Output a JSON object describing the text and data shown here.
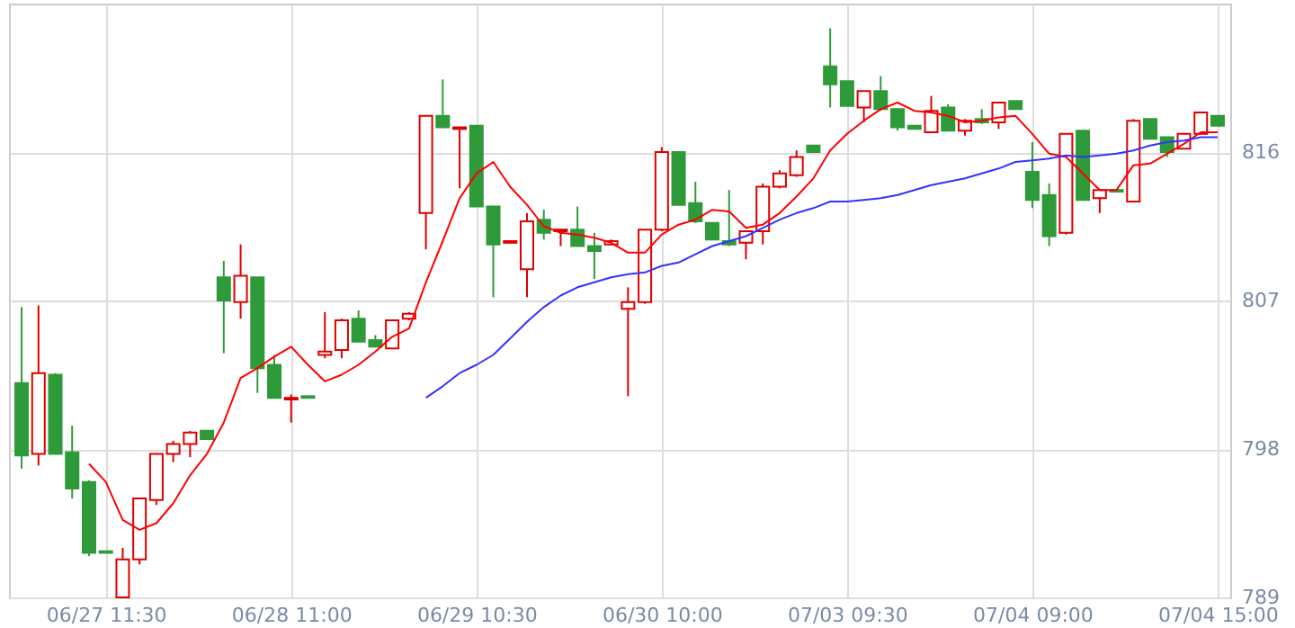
{
  "chart_data": {
    "type": "candlestick",
    "categories": [
      null,
      null,
      null,
      null,
      null,
      "06/27 11:30",
      null,
      null,
      null,
      null,
      null,
      null,
      null,
      null,
      null,
      null,
      "06/28 11:00",
      null,
      null,
      null,
      null,
      null,
      null,
      null,
      null,
      null,
      null,
      "06/29 10:30",
      null,
      null,
      null,
      null,
      null,
      null,
      null,
      null,
      null,
      null,
      "06/30 10:00",
      null,
      null,
      null,
      null,
      null,
      null,
      null,
      null,
      null,
      null,
      "07/03 09:30",
      null,
      null,
      null,
      null,
      null,
      null,
      null,
      null,
      null,
      null,
      "07/04 09:00",
      null,
      null,
      null,
      null,
      null,
      null,
      null,
      null,
      null,
      null,
      "07/04 15:00"
    ],
    "ohlc": [
      [
        802.0,
        806.6,
        796.8,
        797.6
      ],
      [
        797.7,
        806.7,
        797.0,
        802.6
      ],
      [
        802.5,
        802.6,
        797.7,
        797.7
      ],
      [
        797.8,
        799.4,
        795.0,
        795.6
      ],
      [
        796.0,
        796.1,
        791.5,
        791.7
      ],
      [
        791.8,
        791.8,
        791.7,
        791.7
      ],
      [
        789.0,
        792.0,
        789.0,
        791.3
      ],
      [
        791.3,
        795.0,
        791.0,
        795.0
      ],
      [
        794.9,
        797.7,
        794.6,
        797.7
      ],
      [
        797.7,
        798.5,
        797.2,
        798.3
      ],
      [
        798.3,
        799.1,
        797.5,
        799.0
      ],
      [
        799.1,
        799.1,
        798.6,
        798.6
      ],
      [
        808.4,
        809.4,
        803.8,
        807.0
      ],
      [
        806.9,
        810.4,
        805.9,
        808.5
      ],
      [
        808.4,
        808.4,
        801.4,
        802.9
      ],
      [
        803.1,
        803.7,
        801.1,
        801.1
      ],
      [
        801.0,
        801.3,
        799.6,
        801.1
      ],
      [
        801.2,
        801.2,
        801.1,
        801.1
      ],
      [
        803.7,
        806.3,
        803.5,
        803.9
      ],
      [
        804.0,
        805.9,
        803.5,
        805.8
      ],
      [
        805.9,
        806.4,
        804.5,
        804.5
      ],
      [
        804.6,
        804.9,
        804.2,
        804.2
      ],
      [
        804.1,
        805.8,
        804.1,
        805.8
      ],
      [
        805.9,
        806.3,
        805.8,
        806.2
      ],
      [
        812.3,
        818.2,
        810.1,
        818.2
      ],
      [
        818.2,
        820.4,
        817.5,
        817.5
      ],
      [
        817.4,
        817.5,
        813.8,
        817.5
      ],
      [
        817.6,
        817.6,
        812.7,
        812.7
      ],
      [
        812.7,
        812.7,
        807.2,
        810.4
      ],
      [
        810.5,
        810.6,
        810.5,
        810.6
      ],
      [
        808.9,
        812.3,
        807.2,
        811.8
      ],
      [
        811.9,
        812.5,
        810.7,
        811.1
      ],
      [
        811.2,
        811.3,
        810.3,
        811.3
      ],
      [
        811.3,
        812.7,
        810.3,
        810.3
      ],
      [
        810.3,
        811.1,
        808.3,
        810.0
      ],
      [
        810.4,
        810.7,
        810.4,
        810.6
      ],
      [
        806.5,
        807.8,
        801.2,
        806.9
      ],
      [
        806.9,
        811.3,
        806.8,
        811.3
      ],
      [
        811.3,
        816.3,
        811.2,
        816.0
      ],
      [
        816.0,
        816.0,
        812.8,
        812.8
      ],
      [
        812.9,
        814.2,
        811.7,
        811.8
      ],
      [
        811.7,
        811.7,
        810.7,
        810.7
      ],
      [
        810.6,
        813.7,
        810.3,
        810.4
      ],
      [
        810.5,
        811.2,
        809.5,
        811.2
      ],
      [
        811.2,
        814.1,
        810.4,
        813.9
      ],
      [
        813.9,
        814.9,
        813.8,
        814.7
      ],
      [
        814.6,
        816.1,
        814.5,
        815.7
      ],
      [
        816.4,
        816.4,
        816.0,
        816.0
      ],
      [
        821.2,
        823.5,
        818.7,
        820.1
      ],
      [
        820.3,
        820.3,
        818.8,
        818.8
      ],
      [
        818.7,
        819.7,
        817.8,
        819.7
      ],
      [
        819.7,
        820.6,
        818.5,
        818.6
      ],
      [
        818.6,
        818.6,
        817.3,
        817.5
      ],
      [
        817.6,
        817.6,
        817.4,
        817.4
      ],
      [
        817.2,
        819.4,
        817.2,
        818.5
      ],
      [
        818.7,
        818.9,
        817.3,
        817.3
      ],
      [
        817.3,
        818.0,
        817.0,
        817.9
      ],
      [
        818.0,
        818.6,
        817.7,
        817.8
      ],
      [
        817.8,
        819.0,
        817.4,
        819.0
      ],
      [
        819.1,
        819.1,
        818.6,
        818.6
      ],
      [
        814.8,
        816.6,
        812.6,
        813.1
      ],
      [
        813.4,
        814.1,
        810.3,
        810.9
      ],
      [
        811.1,
        817.1,
        811.0,
        817.1
      ],
      [
        817.3,
        817.3,
        813.1,
        813.1
      ],
      [
        813.2,
        813.7,
        812.3,
        813.7
      ],
      [
        813.7,
        813.7,
        813.6,
        813.6
      ],
      [
        813.0,
        818.0,
        813.0,
        817.9
      ],
      [
        818.0,
        818.0,
        816.8,
        816.8
      ],
      [
        816.9,
        816.9,
        815.7,
        816.0
      ],
      [
        816.2,
        817.1,
        816.2,
        817.1
      ],
      [
        817.1,
        818.4,
        817.1,
        818.4
      ],
      [
        818.2,
        818.2,
        817.6,
        817.6
      ]
    ],
    "colors": [
      "#2e9a3a",
      "#dd0000",
      "#2e9a3a",
      "#2e9a3a",
      "#2e9a3a",
      "#2e9a3a",
      "#dd0000",
      "#dd0000",
      "#dd0000",
      "#dd0000",
      "#dd0000",
      "#2e9a3a",
      "#2e9a3a",
      "#dd0000",
      "#2e9a3a",
      "#2e9a3a",
      "#dd0000",
      "#2e9a3a",
      "#dd0000",
      "#dd0000",
      "#2e9a3a",
      "#2e9a3a",
      "#dd0000",
      "#dd0000",
      "#dd0000",
      "#2e9a3a",
      "#dd0000",
      "#2e9a3a",
      "#2e9a3a",
      "#dd0000",
      "#dd0000",
      "#2e9a3a",
      "#dd0000",
      "#2e9a3a",
      "#2e9a3a",
      "#dd0000",
      "#dd0000",
      "#dd0000",
      "#dd0000",
      "#2e9a3a",
      "#2e9a3a",
      "#2e9a3a",
      "#2e9a3a",
      "#dd0000",
      "#dd0000",
      "#dd0000",
      "#dd0000",
      "#2e9a3a",
      "#2e9a3a",
      "#2e9a3a",
      "#dd0000",
      "#2e9a3a",
      "#2e9a3a",
      "#2e9a3a",
      "#dd0000",
      "#2e9a3a",
      "#dd0000",
      "#2e9a3a",
      "#dd0000",
      "#2e9a3a",
      "#2e9a3a",
      "#2e9a3a",
      "#dd0000",
      "#2e9a3a",
      "#dd0000",
      "#2e9a3a",
      "#dd0000",
      "#2e9a3a",
      "#2e9a3a",
      "#dd0000",
      "#dd0000",
      "#2e9a3a"
    ],
    "series": [
      {
        "type": "line",
        "color": "#ff0000",
        "values": [
          null,
          null,
          null,
          null,
          797.1,
          796.0,
          793.7,
          793.1,
          793.5,
          794.7,
          796.4,
          797.7,
          799.6,
          802.3,
          802.9,
          803.6,
          804.2,
          803.1,
          802.1,
          802.5,
          803.1,
          803.9,
          804.8,
          805.3,
          808.1,
          810.6,
          813.2,
          814.7,
          815.4,
          813.9,
          812.8,
          811.5,
          811.1,
          811.0,
          810.8,
          810.5,
          809.9,
          809.9,
          811.0,
          811.6,
          811.9,
          812.5,
          812.4,
          811.4,
          811.6,
          812.3,
          813.3,
          814.4,
          816.1,
          817.1,
          817.9,
          818.6,
          819.0,
          818.5,
          818.4,
          818.2,
          817.8,
          817.9,
          818.1,
          818.2,
          817.1,
          815.9,
          815.7,
          814.7,
          813.7,
          813.7,
          815.2,
          815.3,
          815.9,
          816.5,
          817.2,
          817.2
        ]
      },
      {
        "type": "line",
        "color": "#3333ff",
        "values": [
          null,
          null,
          null,
          null,
          null,
          null,
          null,
          null,
          null,
          null,
          null,
          null,
          null,
          null,
          null,
          null,
          null,
          null,
          null,
          null,
          null,
          null,
          null,
          null,
          801.1,
          801.8,
          802.6,
          803.1,
          803.7,
          804.7,
          805.7,
          806.6,
          807.3,
          807.8,
          808.1,
          808.4,
          808.6,
          808.7,
          809.1,
          809.3,
          809.8,
          810.3,
          810.6,
          810.9,
          811.4,
          811.9,
          812.3,
          812.6,
          813.0,
          813.0,
          813.1,
          813.2,
          813.4,
          813.7,
          814.0,
          814.2,
          814.4,
          814.7,
          815.0,
          815.4,
          815.5,
          815.6,
          815.8,
          815.7,
          815.8,
          815.9,
          816.1,
          816.4,
          816.6,
          816.7,
          816.9,
          816.9
        ]
      }
    ],
    "ylim": [
      789,
      825
    ],
    "yticks": [
      789,
      798,
      807,
      816
    ],
    "grid": true
  }
}
